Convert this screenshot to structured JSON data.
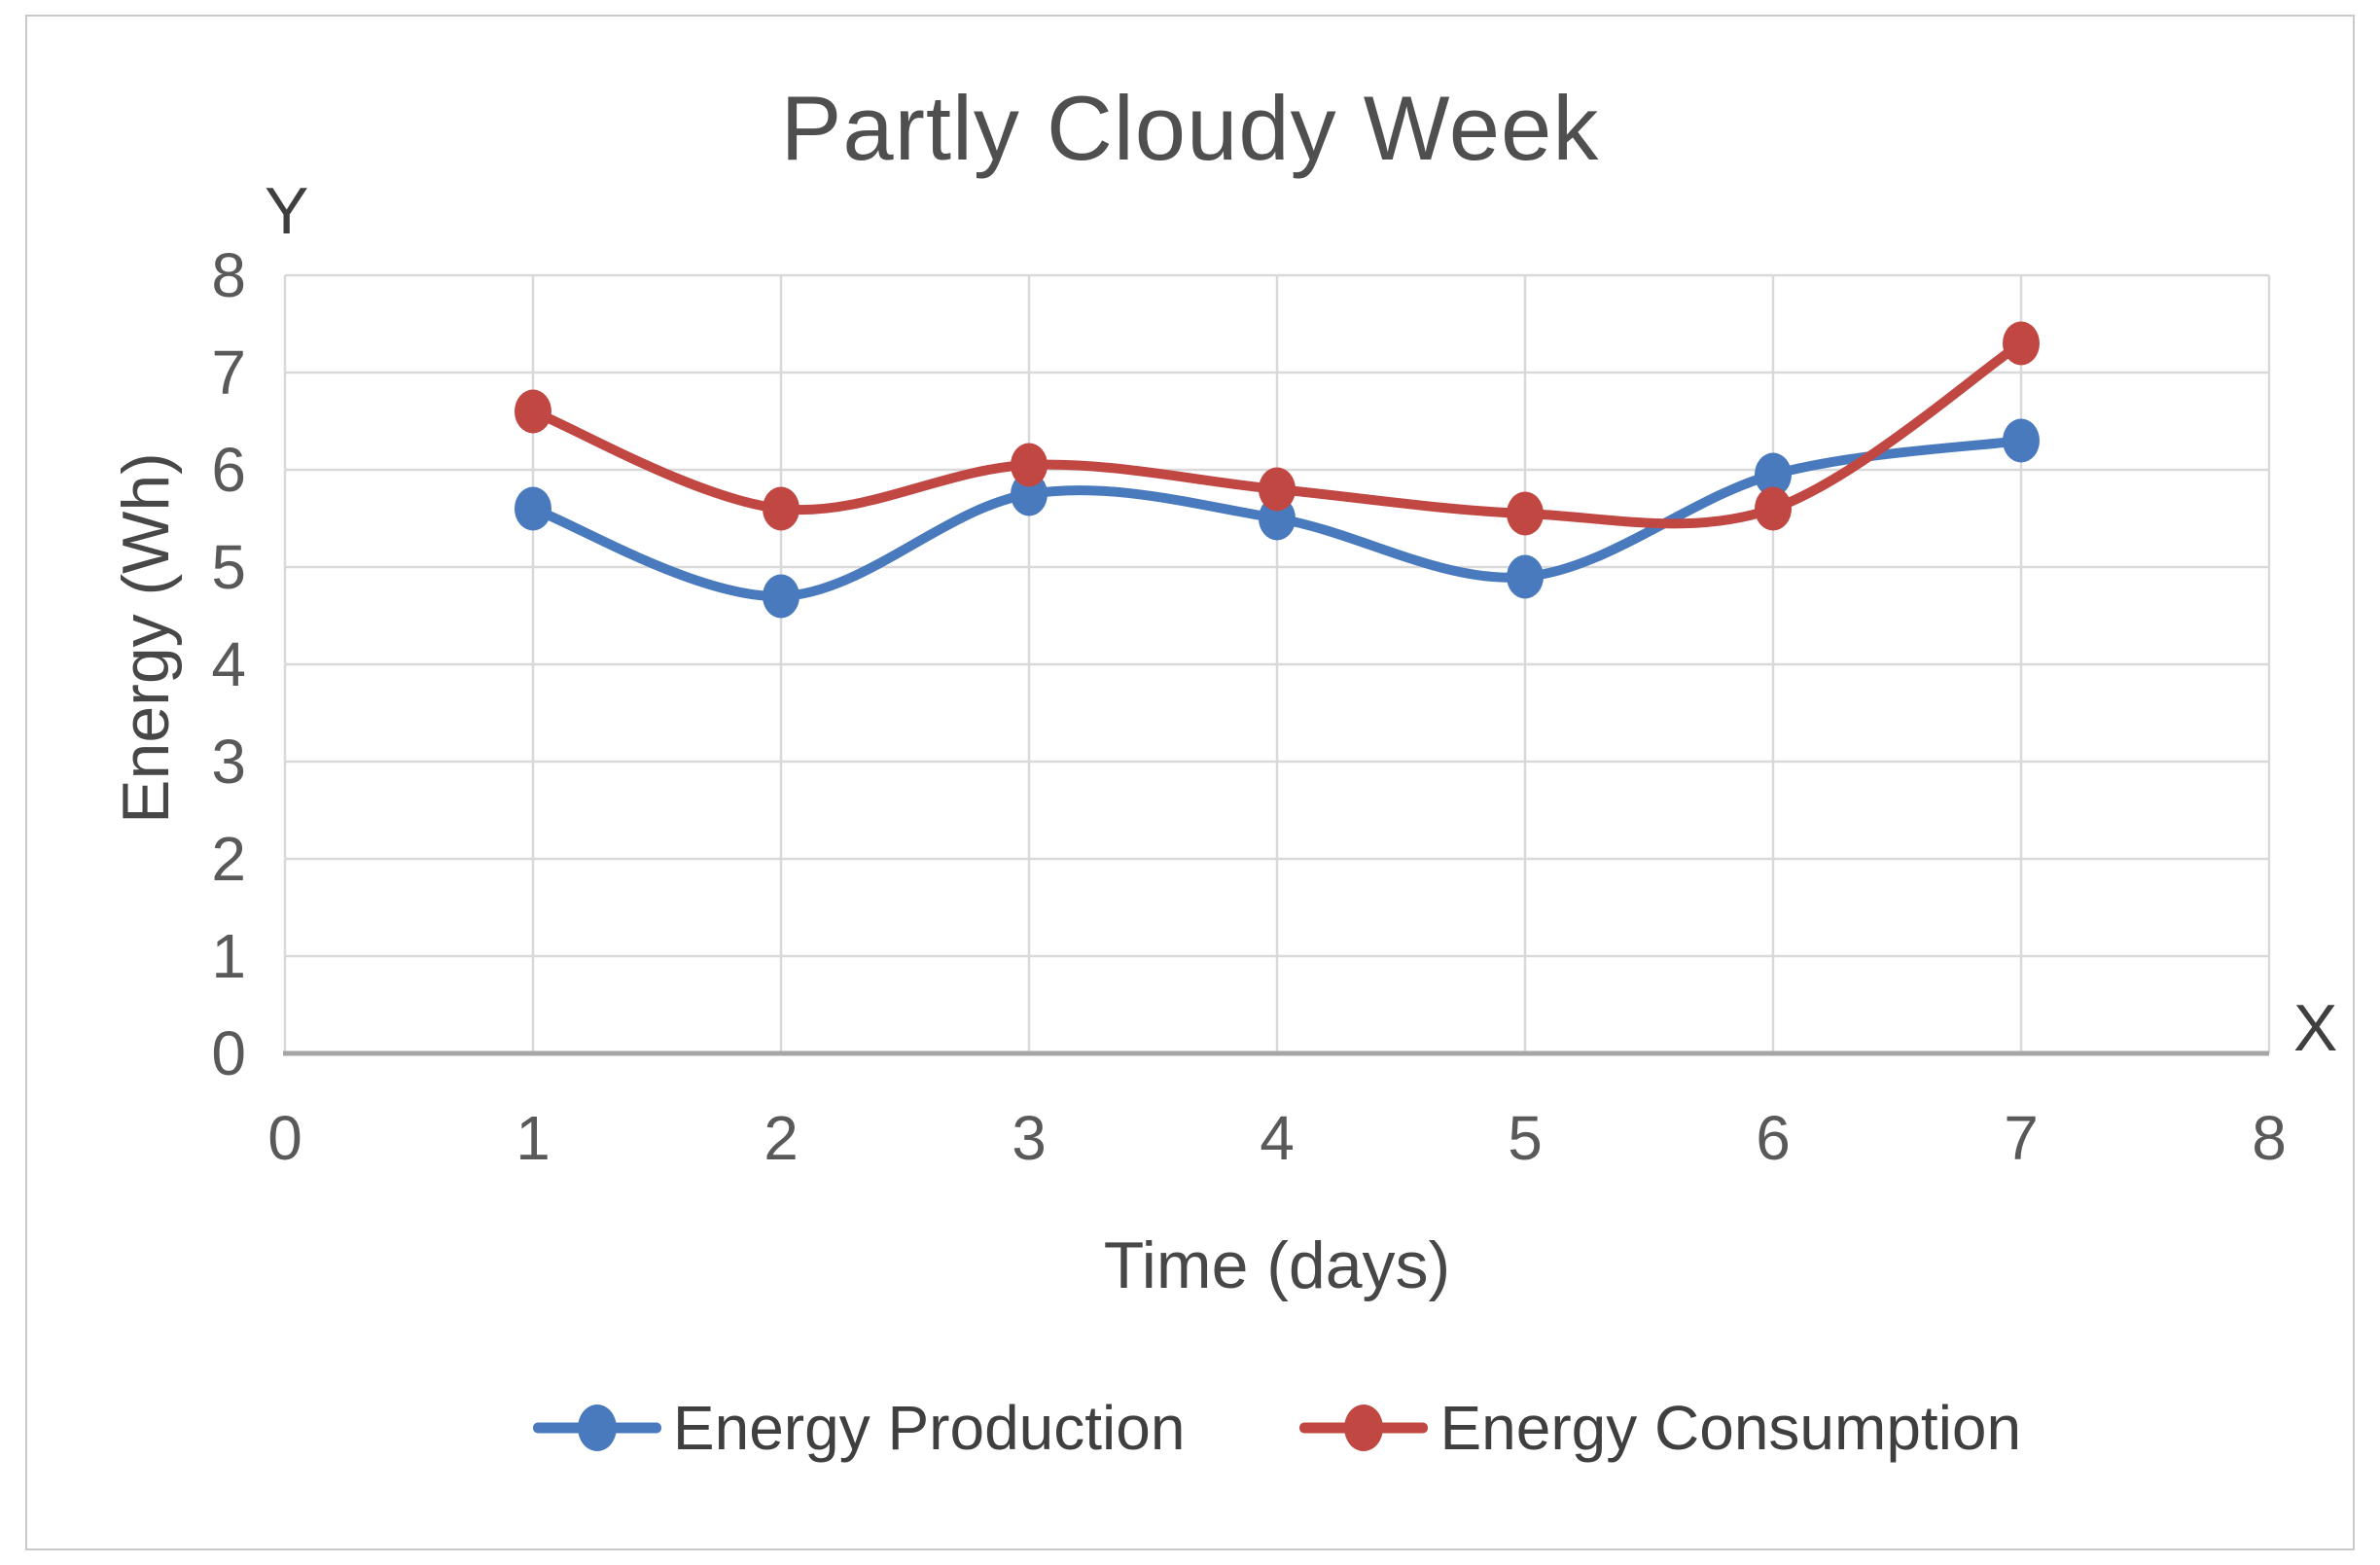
{
  "chart": {
    "axis_letters": {
      "x": "X",
      "y": "Y"
    }
  },
  "colors": {
    "gridline": "#d9d9d9",
    "axis_line": "#a6a6a6",
    "tick_text": "#595959",
    "title_text": "#4f4f4f",
    "border": "#c9c9c9",
    "series_blue": "#4a7abe",
    "series_red": "#c14743"
  },
  "chart_data": {
    "type": "line",
    "title": "Partly Cloudy Week",
    "xlabel": "Time (days)",
    "ylabel": "Energy (Wh)",
    "x": [
      1,
      2,
      3,
      4,
      5,
      6,
      7
    ],
    "series": [
      {
        "name": "Energy Production",
        "color": "#4a7abe",
        "values": [
          5.6,
          4.7,
          5.75,
          5.5,
          4.9,
          5.95,
          6.3
        ]
      },
      {
        "name": "Energy Consumption",
        "color": "#c14743",
        "values": [
          6.6,
          5.6,
          6.05,
          5.8,
          5.55,
          5.6,
          7.3
        ]
      }
    ],
    "xlim": [
      0,
      8
    ],
    "ylim": [
      0,
      8
    ],
    "x_ticks": [
      "0",
      "1",
      "2",
      "3",
      "4",
      "5",
      "6",
      "7",
      "8"
    ],
    "y_ticks": [
      "0",
      "1",
      "2",
      "3",
      "4",
      "5",
      "6",
      "7",
      "8"
    ],
    "grid": true,
    "smooth": true,
    "marker": "oval",
    "legend_position": "bottom"
  }
}
